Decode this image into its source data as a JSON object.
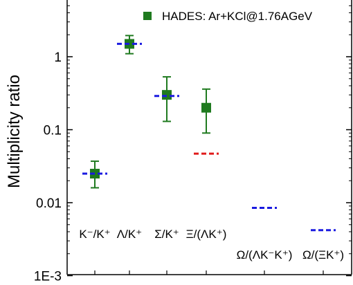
{
  "chart_data": {
    "type": "scatter",
    "title": "",
    "ylabel": "Multiplicity ratio",
    "yscale": "log",
    "ylim": [
      0.001,
      6
    ],
    "y_ticks": [
      {
        "value": 1,
        "label": "1"
      },
      {
        "value": 0.1,
        "label": "0.1"
      },
      {
        "value": 0.01,
        "label": "0.01"
      },
      {
        "value": 0.001,
        "label": "1E-3"
      }
    ],
    "legend": {
      "label": "HADES: Ar+KCl@1.76AGeV",
      "position": "top-right"
    },
    "categories": [
      {
        "label": "K⁻/K⁺"
      },
      {
        "label": "Λ/K⁺"
      },
      {
        "label": "Σ/K⁺"
      },
      {
        "label": "Ξ/(ΛK⁺)"
      },
      {
        "label": "Ω/(ΛK⁻K⁺)"
      },
      {
        "label": "Ω/(ΞK⁺)"
      }
    ],
    "series": [
      {
        "name": "HADES: Ar+KCl@1.76AGeV",
        "color": "#1f7a1f",
        "points": [
          {
            "category": 0,
            "y": 0.025,
            "err_low": 0.016,
            "err_high": 0.037
          },
          {
            "category": 1,
            "y": 1.5,
            "err_low": 1.1,
            "err_high": 1.95
          },
          {
            "category": 2,
            "y": 0.3,
            "err_low": 0.13,
            "err_high": 0.53
          },
          {
            "category": 3,
            "y": 0.2,
            "err_low": 0.09,
            "err_high": 0.36
          }
        ]
      },
      {
        "color": "#1a1ae0",
        "style": "dashed",
        "points": [
          {
            "category": 0,
            "y": 0.025
          },
          {
            "category": 1,
            "y": 1.5
          },
          {
            "category": 2,
            "y": 0.29
          },
          {
            "category": 4,
            "y": 0.0085
          },
          {
            "category": 5,
            "y": 0.0042
          }
        ]
      },
      {
        "color": "#e01a1a",
        "style": "dashed",
        "points": [
          {
            "category": 3,
            "y": 0.047
          }
        ]
      }
    ]
  }
}
